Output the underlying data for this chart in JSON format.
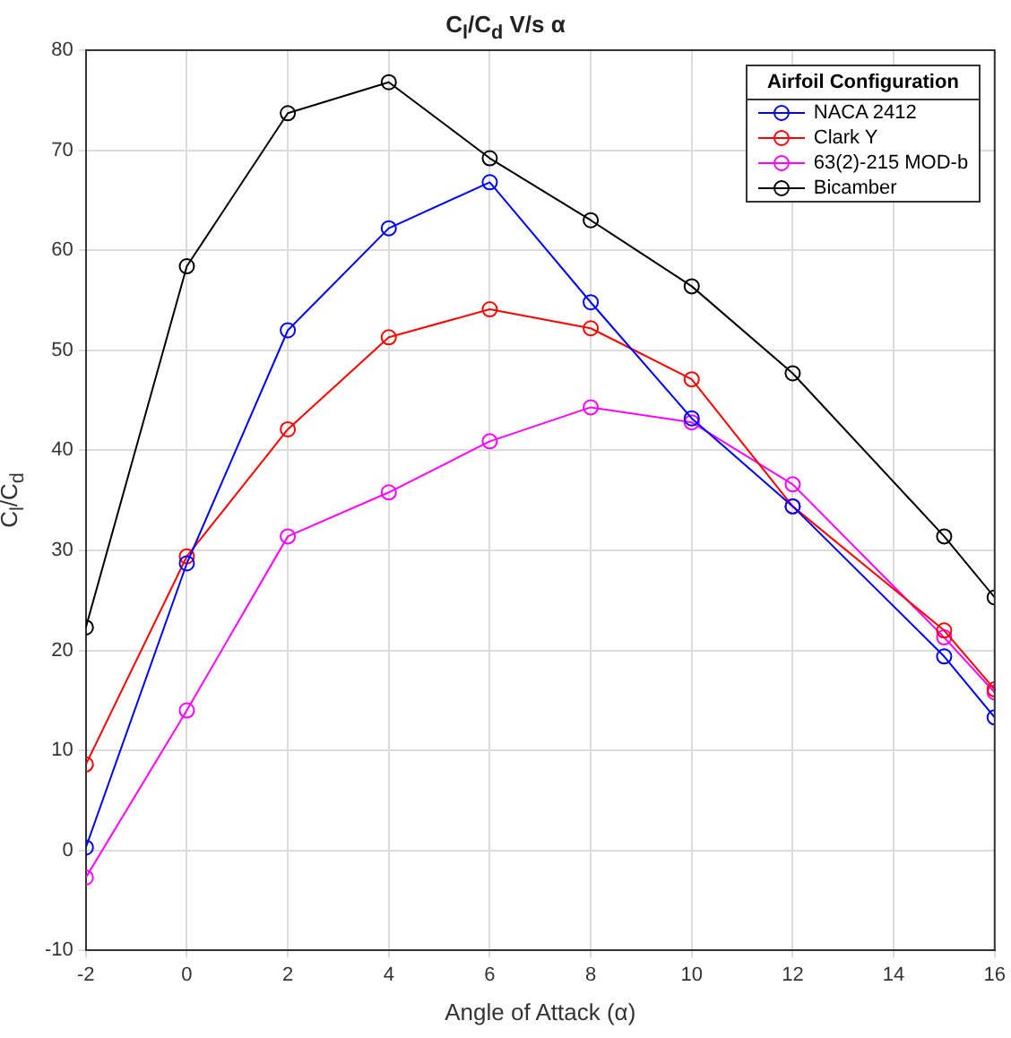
{
  "chart_data": {
    "type": "line",
    "title": "C$_{l}$/C$_{d}$ V/s α",
    "xlabel": "Angle of Attack (α)",
    "ylabel": "C$_{l}$/C$_{d}$",
    "legend_title": "Airfoil Configuration",
    "x": [
      -2,
      0,
      2,
      4,
      6,
      8,
      10,
      12,
      15,
      16
    ],
    "series": [
      {
        "name": "NACA 2412",
        "color": "#0000ff",
        "values": [
          0.3,
          28.7,
          52,
          62.2,
          66.8,
          54.8,
          43.2,
          34.4,
          19.4,
          13.3
        ]
      },
      {
        "name": "Clark Y",
        "color": "#ff0000",
        "values": [
          8.6,
          29.4,
          42.1,
          51.3,
          54.1,
          52.2,
          47.1,
          34.4,
          22,
          16.1
        ]
      },
      {
        "name": "63(2)-215 MOD-b",
        "color": "#ff00ff",
        "values": [
          -2.7,
          14,
          31.4,
          35.8,
          40.9,
          44.3,
          42.8,
          36.6,
          21.3,
          15.8
        ]
      },
      {
        "name": "Bicamber",
        "color": "#000000",
        "values": [
          22.3,
          58.4,
          73.7,
          76.8,
          69.2,
          63,
          56.4,
          47.7,
          31.4,
          25.3
        ]
      }
    ],
    "xlim": [
      -2,
      16
    ],
    "xticks": [
      -2,
      0,
      2,
      4,
      6,
      8,
      10,
      12,
      14,
      16
    ],
    "ylim": [
      -10,
      80
    ],
    "yticks": [
      -10,
      0,
      10,
      20,
      30,
      40,
      50,
      60,
      70,
      80
    ],
    "grid": true,
    "legend": "top right",
    "marker": "circle",
    "line_style": "solid"
  }
}
